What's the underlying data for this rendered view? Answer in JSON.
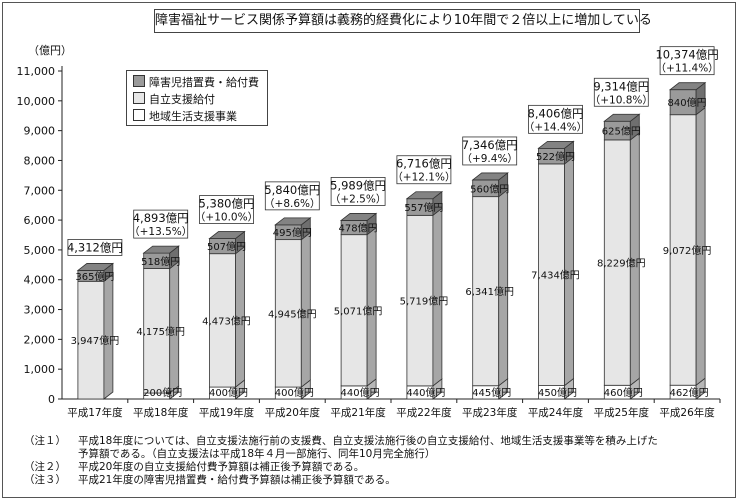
{
  "chart_data": {
    "type": "bar",
    "stacked": true,
    "style": "3d",
    "title": "障害福祉サービス関係予算額は義務的経費化により10年間で２倍以上に増加している",
    "ylabel": "（億円）",
    "ylim": [
      0,
      11000
    ],
    "yticks": [
      "0",
      "1,000",
      "2,000",
      "3,000",
      "4,000",
      "5,000",
      "6,000",
      "7,000",
      "8,000",
      "9,000",
      "10,000",
      "11,000"
    ],
    "grid": false,
    "legend_position": "top-left",
    "categories": [
      "平成17年度",
      "平成18年度",
      "平成19年度",
      "平成20年度",
      "平成21年度",
      "平成22年度",
      "平成23年度",
      "平成24年度",
      "平成25年度",
      "平成26年度"
    ],
    "series": [
      {
        "name": "地域生活支援事業",
        "color": "#ffffff",
        "values": [
          0,
          200,
          400,
          400,
          440,
          440,
          445,
          450,
          460,
          462
        ],
        "labels": [
          "",
          "200億円",
          "400億円",
          "400億円",
          "440億円",
          "440億円",
          "445億円",
          "450億円",
          "460億円",
          "462億円"
        ]
      },
      {
        "name": "自立支援給付",
        "color": "#e6e6e6",
        "values": [
          3947,
          4175,
          4473,
          4945,
          5071,
          5719,
          6341,
          7434,
          8229,
          9072
        ],
        "labels": [
          "3,947億円",
          "4,175億円",
          "4,473億円",
          "4,945億円",
          "5,071億円",
          "5,719億円",
          "6,341億円",
          "7,434億円",
          "8,229億円",
          "9,072億円"
        ]
      },
      {
        "name": "障害児措置費・給付費",
        "color": "#9a9a9a",
        "values": [
          365,
          518,
          507,
          495,
          478,
          557,
          560,
          522,
          625,
          840
        ],
        "labels": [
          "365億円",
          "518億円",
          "507億円",
          "495億円",
          "478億円",
          "557億円",
          "560億円",
          "522億円",
          "625億円",
          "840億円"
        ]
      }
    ],
    "totals": [
      4312,
      4893,
      5380,
      5840,
      5989,
      6716,
      7346,
      8406,
      9314,
      10374
    ],
    "total_labels": [
      "4,312億円",
      "4,893億円",
      "5,380億円",
      "5,840億円",
      "5,989億円",
      "6,716億円",
      "7,346億円",
      "8,406億円",
      "9,314億円",
      "10,374億円"
    ],
    "growth_labels": [
      "",
      "（+13.5%）",
      "（+10.0%）",
      "（+8.6%）",
      "（+2.5%）",
      "（+12.1%）",
      "（+9.4%）",
      "（+14.4%）",
      "（+10.8%）",
      "（+11.4%）"
    ]
  },
  "legend": {
    "items": [
      {
        "label": "障害児措置費・給付費",
        "color": "#9a9a9a"
      },
      {
        "label": "自立支援給付",
        "color": "#e6e6e6"
      },
      {
        "label": "地域生活支援事業",
        "color": "#ffffff"
      }
    ]
  },
  "notes": [
    {
      "key": "（注１）",
      "text": "平成18年度については、自立支援法施行前の支援費、自立支援法施行後の自立支援給付、地域生活支援事業等を積み上げた",
      "sub": [
        "予算額である。（自立支援法は平成18年４月一部施行、同年10月完全施行）"
      ]
    },
    {
      "key": "（注２）",
      "text": "平成20年度の自立支援給付費予算額は補正後予算額である。",
      "sub": []
    },
    {
      "key": "（注３）",
      "text": "平成21年度の障害児措置費・給付費予算額は補正後予算額である。",
      "sub": []
    }
  ]
}
